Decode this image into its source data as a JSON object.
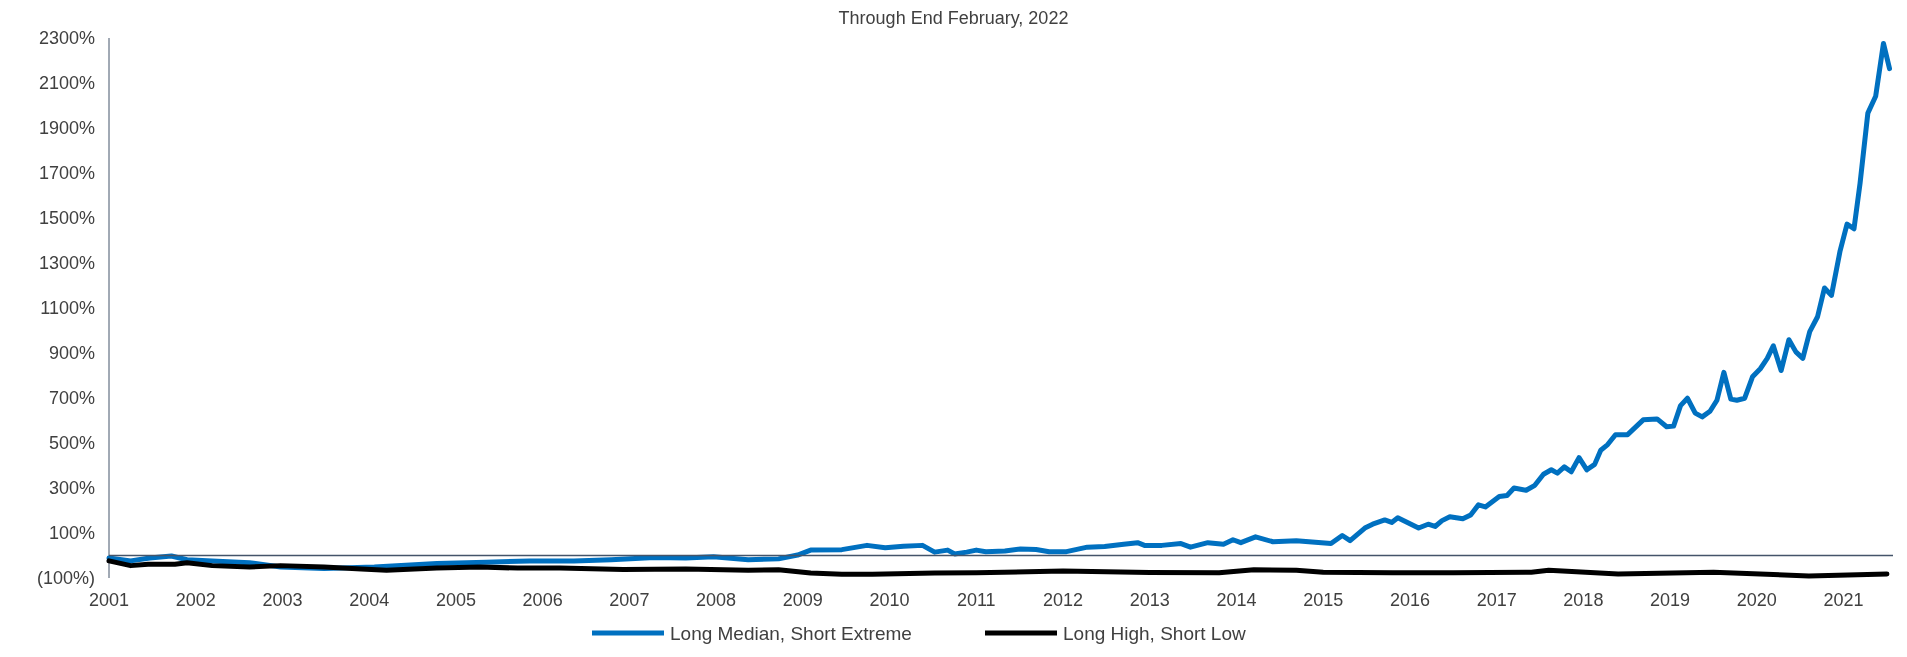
{
  "chart_data": {
    "type": "line",
    "title": "Through End February, 2022",
    "xlim": [
      2001,
      2021.57
    ],
    "xticks": [
      2001,
      2002,
      2003,
      2004,
      2005,
      2006,
      2007,
      2008,
      2009,
      2010,
      2011,
      2012,
      2013,
      2014,
      2015,
      2016,
      2017,
      2018,
      2019,
      2020,
      2021
    ],
    "ylim": [
      -100,
      2300
    ],
    "yticks": [
      {
        "value": -100,
        "label": "(100%)"
      },
      {
        "value": 100,
        "label": "100%"
      },
      {
        "value": 300,
        "label": "300%"
      },
      {
        "value": 500,
        "label": "500%"
      },
      {
        "value": 700,
        "label": "700%"
      },
      {
        "value": 900,
        "label": "900%"
      },
      {
        "value": 1100,
        "label": "1100%"
      },
      {
        "value": 1300,
        "label": "1300%"
      },
      {
        "value": 1500,
        "label": "1500%"
      },
      {
        "value": 1700,
        "label": "1700%"
      },
      {
        "value": 1900,
        "label": "1900%"
      },
      {
        "value": 2100,
        "label": "2100%"
      },
      {
        "value": 2300,
        "label": "2300%"
      }
    ],
    "grid": false,
    "legend": "bottom",
    "marker": "none",
    "line_style": "solid",
    "series": [
      {
        "name": "Long Median, Short Extreme",
        "color": "#0070c0",
        "x": [
          2001.0,
          2001.25,
          2001.47,
          2001.72,
          2001.9,
          2002.19,
          2002.62,
          2002.98,
          2003.48,
          2004.06,
          2004.78,
          2005.35,
          2005.85,
          2006.36,
          2006.79,
          2007.29,
          2007.65,
          2007.97,
          2008.37,
          2008.72,
          2008.94,
          2009.09,
          2009.45,
          2009.74,
          2009.95,
          2010.16,
          2010.38,
          2010.52,
          2010.67,
          2010.75,
          2010.89,
          2011.0,
          2011.11,
          2011.33,
          2011.51,
          2011.69,
          2011.84,
          2012.04,
          2012.28,
          2012.48,
          2012.7,
          2012.86,
          2012.94,
          2013.14,
          2013.36,
          2013.47,
          2013.67,
          2013.85,
          2013.96,
          2014.05,
          2014.22,
          2014.42,
          2014.69,
          2015.09,
          2015.22,
          2015.31,
          2015.48,
          2015.57,
          2015.71,
          2015.79,
          2015.86,
          2016.1,
          2016.21,
          2016.29,
          2016.37,
          2016.46,
          2016.61,
          2016.7,
          2016.79,
          2016.87,
          2017.03,
          2017.12,
          2017.2,
          2017.34,
          2017.44,
          2017.54,
          2017.63,
          2017.7,
          2017.78,
          2017.86,
          2017.95,
          2018.04,
          2018.13,
          2018.2,
          2018.28,
          2018.37,
          2018.51,
          2018.69,
          2018.85,
          2018.96,
          2019.04,
          2019.12,
          2019.2,
          2019.29,
          2019.37,
          2019.46,
          2019.54,
          2019.62,
          2019.7,
          2019.77,
          2019.86,
          2019.95,
          2020.04,
          2020.12,
          2020.19,
          2020.28,
          2020.37,
          2020.45,
          2020.53,
          2020.61,
          2020.7,
          2020.78,
          2020.86,
          2020.96,
          2021.04,
          2021.12,
          2021.19,
          2021.28,
          2021.37,
          2021.46,
          2021.53
        ],
        "values": [
          -11,
          -24,
          -11,
          -2,
          -19,
          -24,
          -32,
          -51,
          -58,
          -51,
          -36,
          -30,
          -24,
          -24,
          -19,
          -9,
          -11,
          -6,
          -19,
          -15,
          2,
          24,
          26,
          45,
          34,
          41,
          45,
          15,
          24,
          7,
          15,
          24,
          17,
          20,
          29,
          27,
          17,
          17,
          37,
          40,
          50,
          57,
          45,
          45,
          53,
          37,
          57,
          50,
          70,
          57,
          83,
          61,
          66,
          53,
          89,
          66,
          122,
          139,
          158,
          147,
          168,
          122,
          139,
          129,
          155,
          172,
          163,
          180,
          225,
          216,
          262,
          267,
          300,
          290,
          312,
          361,
          381,
          366,
          394,
          372,
          435,
          381,
          405,
          468,
          493,
          537,
          537,
          603,
          607,
          572,
          575,
          666,
          699,
          633,
          616,
          641,
          690,
          814,
          695,
          690,
          699,
          794,
          830,
          876,
          932,
          822,
          959,
          905,
          876,
          995,
          1061,
          1189,
          1156,
          1354,
          1473,
          1452,
          1654,
          1966,
          2041,
          2276,
          2164
        ]
      },
      {
        "name": "Long High, Short Low",
        "color": "#000000",
        "x": [
          2001.0,
          2001.25,
          2001.45,
          2001.76,
          2001.9,
          2002.19,
          2002.62,
          2002.98,
          2003.48,
          2003.91,
          2004.2,
          2004.78,
          2005.28,
          2005.71,
          2006.2,
          2006.93,
          2007.65,
          2008.37,
          2008.72,
          2009.09,
          2009.45,
          2009.8,
          2010.52,
          2011.0,
          2012.0,
          2013.0,
          2013.8,
          2014.2,
          2014.69,
          2015.0,
          2015.8,
          2016.5,
          2017.4,
          2017.6,
          2018.4,
          2019.5,
          2020.6,
          2021.5
        ],
        "values": [
          -24,
          -45,
          -39,
          -39,
          -32,
          -45,
          -51,
          -45,
          -51,
          -60,
          -66,
          -56,
          -51,
          -56,
          -56,
          -62,
          -60,
          -66,
          -63,
          -78,
          -83,
          -83,
          -78,
          -77,
          -69,
          -76,
          -77,
          -63,
          -66,
          -74,
          -77,
          -77,
          -74,
          -66,
          -82,
          -74,
          -91,
          -82
        ]
      }
    ]
  }
}
